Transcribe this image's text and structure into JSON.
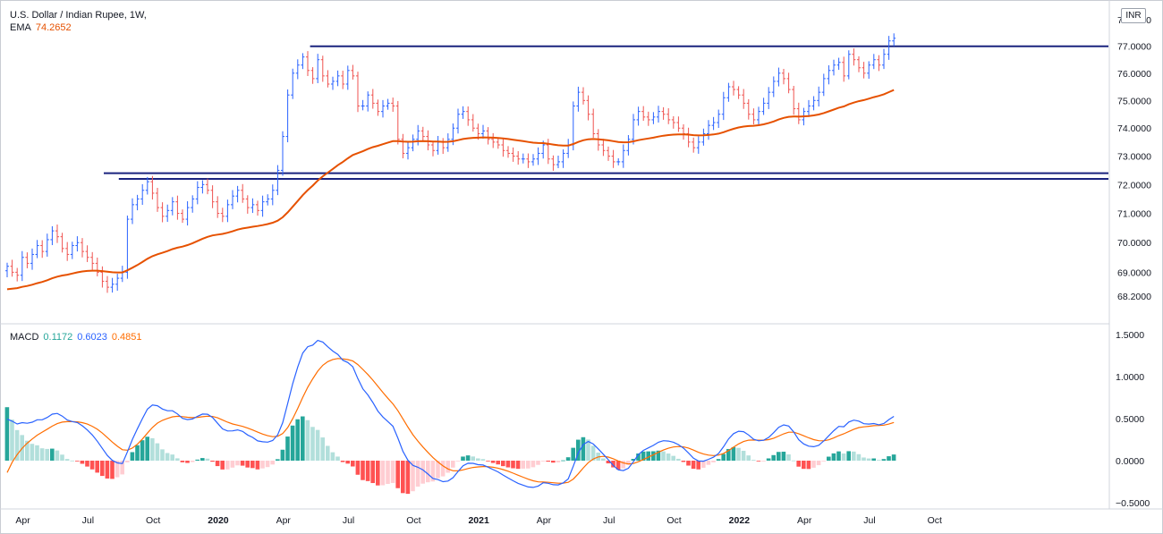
{
  "legend": {
    "symbol": "U.S. Dollar / Indian Rupee, 1W,",
    "ema_label": "EMA",
    "ema_value": "74.2652",
    "macd_label": "MACD",
    "macd_hist": "0.1172",
    "macd_line": "0.6023",
    "macd_signal": "0.4851"
  },
  "currency_badge": "INR",
  "colors": {
    "up": "#2962ff",
    "down": "#ef5350",
    "ema": "#e65100",
    "macd": "#2962ff",
    "signal": "#ff6d00",
    "hist_up_strong": "#26a69a",
    "hist_up_weak": "#b2dfdb",
    "hist_down_strong": "#ff5252",
    "hist_down_weak": "#ffcdd2",
    "level": "#1a237e"
  },
  "chart_data": [
    {
      "type": "ohlc",
      "timeframe": "1W",
      "y_scale": "log",
      "ylim": [
        68.0,
        78.0
      ],
      "y_ticks": [
        "78.0000",
        "77.0000",
        "76.0000",
        "75.0000",
        "74.0000",
        "73.0000",
        "72.0000",
        "71.0000",
        "70.0000",
        "69.0000",
        "68.2000"
      ],
      "x_ticks": [
        {
          "label": "Apr",
          "bold": false
        },
        {
          "label": "Jul",
          "bold": false
        },
        {
          "label": "Oct",
          "bold": false
        },
        {
          "label": "2020",
          "bold": true
        },
        {
          "label": "Apr",
          "bold": false
        },
        {
          "label": "Jul",
          "bold": false
        },
        {
          "label": "Oct",
          "bold": false
        },
        {
          "label": "2021",
          "bold": true
        },
        {
          "label": "Apr",
          "bold": false
        },
        {
          "label": "Jul",
          "bold": false
        },
        {
          "label": "Oct",
          "bold": false
        },
        {
          "label": "2022",
          "bold": true
        },
        {
          "label": "Apr",
          "bold": false
        },
        {
          "label": "Jul",
          "bold": false
        },
        {
          "label": "Oct",
          "bold": false
        }
      ],
      "closes": [
        69.2,
        69.0,
        68.9,
        69.5,
        69.3,
        69.6,
        69.9,
        69.7,
        70.1,
        70.4,
        70.2,
        69.8,
        69.6,
        69.9,
        70.0,
        69.7,
        69.5,
        69.3,
        69.0,
        68.7,
        68.5,
        68.6,
        68.8,
        69.0,
        70.8,
        71.3,
        71.5,
        71.8,
        72.1,
        71.7,
        71.2,
        70.9,
        71.1,
        71.4,
        71.0,
        70.8,
        71.2,
        71.5,
        71.9,
        72.0,
        71.8,
        71.4,
        71.0,
        70.9,
        71.3,
        71.6,
        71.8,
        71.5,
        71.2,
        71.3,
        71.1,
        71.4,
        71.5,
        71.8,
        72.5,
        73.7,
        75.2,
        76.0,
        76.3,
        76.6,
        76.1,
        75.8,
        76.5,
        75.9,
        75.6,
        75.7,
        75.9,
        75.6,
        76.1,
        75.9,
        74.8,
        74.8,
        75.2,
        74.9,
        74.6,
        74.8,
        74.9,
        74.8,
        73.6,
        73.1,
        73.3,
        73.6,
        73.9,
        73.7,
        73.4,
        73.2,
        73.5,
        73.3,
        73.6,
        74.0,
        74.5,
        74.6,
        74.3,
        74.0,
        73.8,
        73.9,
        73.6,
        73.5,
        73.4,
        73.2,
        73.1,
        73.0,
        72.9,
        72.9,
        72.8,
        72.9,
        73.1,
        73.4,
        72.9,
        72.7,
        72.8,
        73.1,
        73.4,
        74.8,
        75.3,
        75.0,
        74.5,
        73.8,
        73.4,
        73.2,
        73.0,
        72.8,
        72.8,
        73.2,
        73.6,
        74.3,
        74.6,
        74.4,
        74.3,
        74.4,
        74.6,
        74.5,
        74.3,
        74.2,
        74.0,
        73.8,
        73.5,
        73.3,
        73.5,
        73.8,
        74.1,
        74.2,
        74.5,
        75.1,
        75.5,
        75.4,
        75.2,
        74.9,
        74.5,
        74.3,
        74.6,
        74.9,
        75.3,
        75.7,
        76.0,
        75.8,
        75.4,
        74.7,
        74.3,
        74.6,
        74.8,
        75.0,
        75.3,
        75.8,
        76.1,
        76.3,
        76.4,
        75.9,
        76.7,
        76.5,
        76.2,
        76.0,
        76.3,
        76.5,
        76.3,
        76.7,
        77.2,
        77.3
      ]
    },
    {
      "type": "macd",
      "ylim": [
        -0.5,
        1.5
      ],
      "y_ticks": [
        "1.5000",
        "1.0000",
        "0.5000",
        "0.0000",
        "−0.5000"
      ]
    }
  ]
}
